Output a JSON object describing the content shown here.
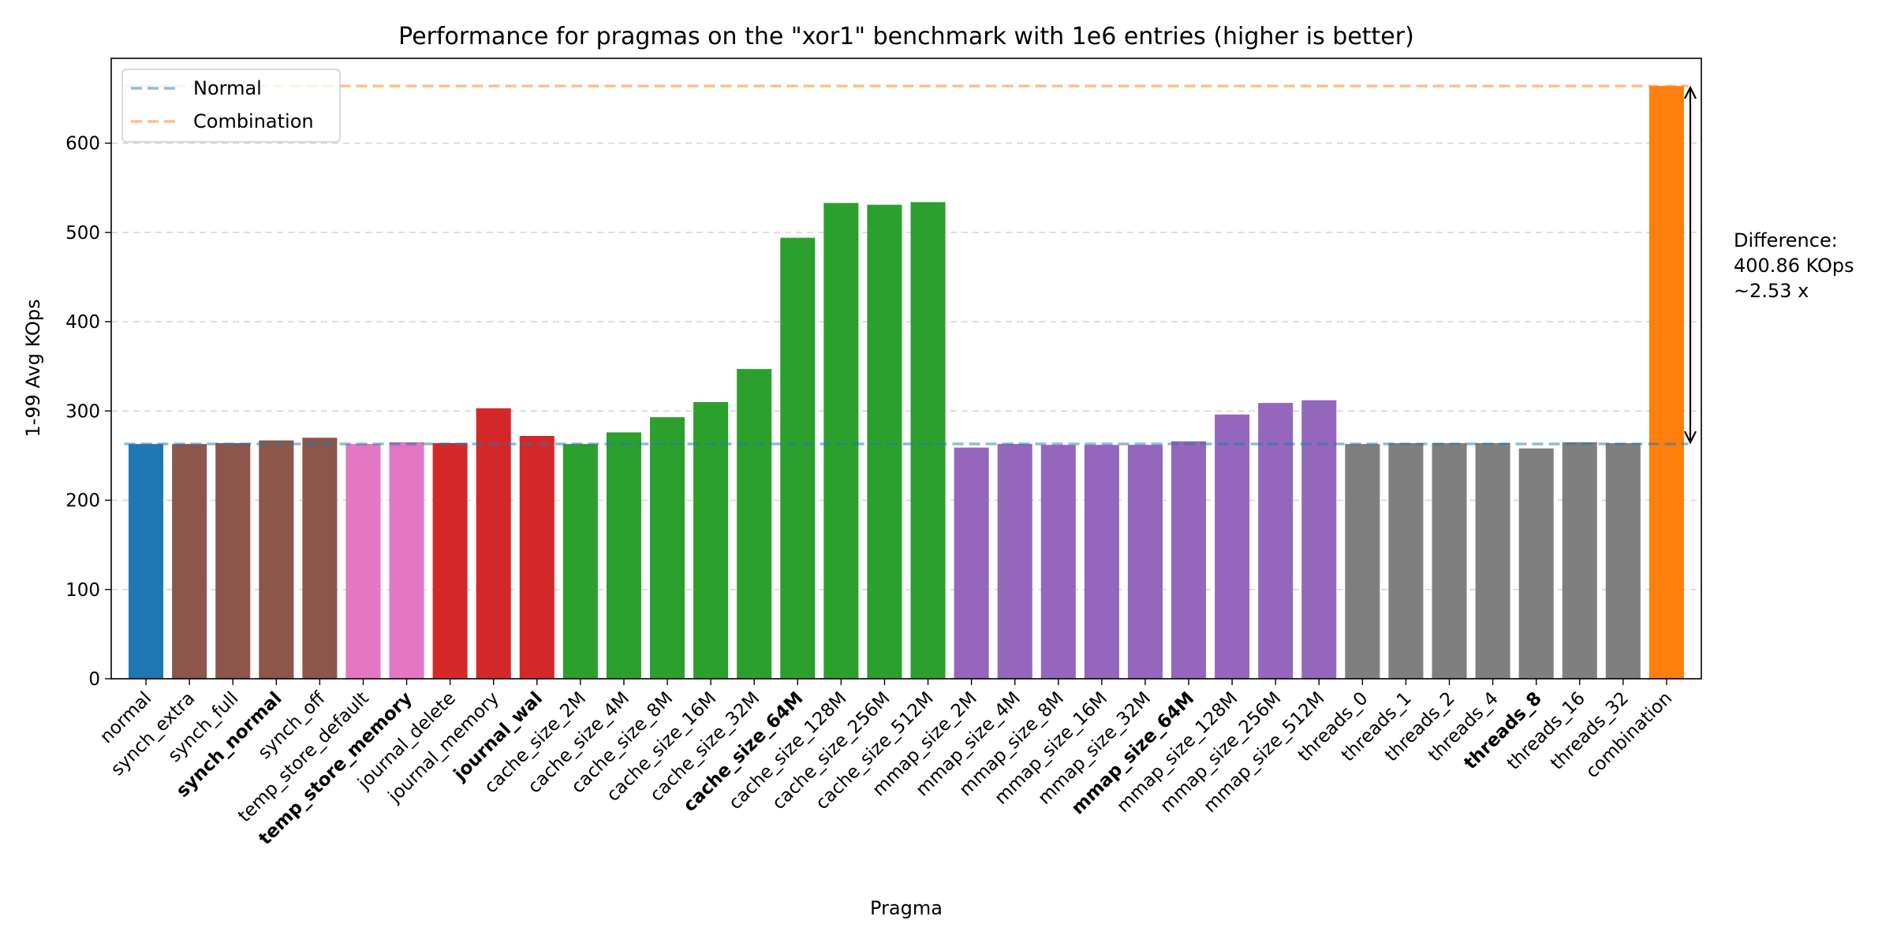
{
  "chart_data": {
    "type": "bar",
    "title": "Performance for pragmas on the \"xor1\" benchmark with 1e6 entries (higher is better)",
    "xlabel": "Pragma",
    "ylabel": "1-99 Avg KOps",
    "ylim": [
      0,
      695
    ],
    "yticks": [
      0,
      100,
      200,
      300,
      400,
      500,
      600
    ],
    "grid": "y-dashed",
    "legend_position": "top-left",
    "categories": [
      "normal",
      "synch_extra",
      "synch_full",
      "synch_normal",
      "synch_off",
      "temp_store_default",
      "temp_store_memory",
      "journal_delete",
      "journal_memory",
      "journal_wal",
      "cache_size_2M",
      "cache_size_4M",
      "cache_size_8M",
      "cache_size_16M",
      "cache_size_32M",
      "cache_size_64M",
      "cache_size_128M",
      "cache_size_256M",
      "cache_size_512M",
      "mmap_size_2M",
      "mmap_size_4M",
      "mmap_size_8M",
      "mmap_size_16M",
      "mmap_size_32M",
      "mmap_size_64M",
      "mmap_size_128M",
      "mmap_size_256M",
      "mmap_size_512M",
      "threads_0",
      "threads_1",
      "threads_2",
      "threads_4",
      "threads_8",
      "threads_16",
      "threads_32",
      "combination"
    ],
    "values": [
      263,
      263,
      264,
      267,
      270,
      263,
      265,
      264,
      303,
      272,
      263,
      276,
      293,
      310,
      347,
      494,
      533,
      531,
      534,
      259,
      263,
      262,
      262,
      262,
      266,
      296,
      309,
      312,
      263,
      264,
      264,
      264,
      258,
      265,
      264,
      664
    ],
    "bold_categories": [
      "synch_normal",
      "temp_store_memory",
      "journal_wal",
      "cache_size_64M",
      "mmap_size_64M",
      "threads_8"
    ],
    "bar_colors": [
      "#1f77b4",
      "#8c564b",
      "#8c564b",
      "#8c564b",
      "#8c564b",
      "#e377c2",
      "#e377c2",
      "#d62728",
      "#d62728",
      "#d62728",
      "#2ca02c",
      "#2ca02c",
      "#2ca02c",
      "#2ca02c",
      "#2ca02c",
      "#2ca02c",
      "#2ca02c",
      "#2ca02c",
      "#2ca02c",
      "#9467bd",
      "#9467bd",
      "#9467bd",
      "#9467bd",
      "#9467bd",
      "#9467bd",
      "#9467bd",
      "#9467bd",
      "#9467bd",
      "#7f7f7f",
      "#7f7f7f",
      "#7f7f7f",
      "#7f7f7f",
      "#7f7f7f",
      "#7f7f7f",
      "#7f7f7f",
      "#ff7f0e"
    ],
    "reference_lines": [
      {
        "name": "Normal",
        "value": 263,
        "color": "#1f77b4"
      },
      {
        "name": "Combination",
        "value": 664,
        "color": "#ff7f0e"
      }
    ],
    "annotation": {
      "lines": [
        "Difference:",
        "400.86 KOps",
        "~2.53 x"
      ],
      "from_value": 263,
      "to_value": 664
    }
  }
}
